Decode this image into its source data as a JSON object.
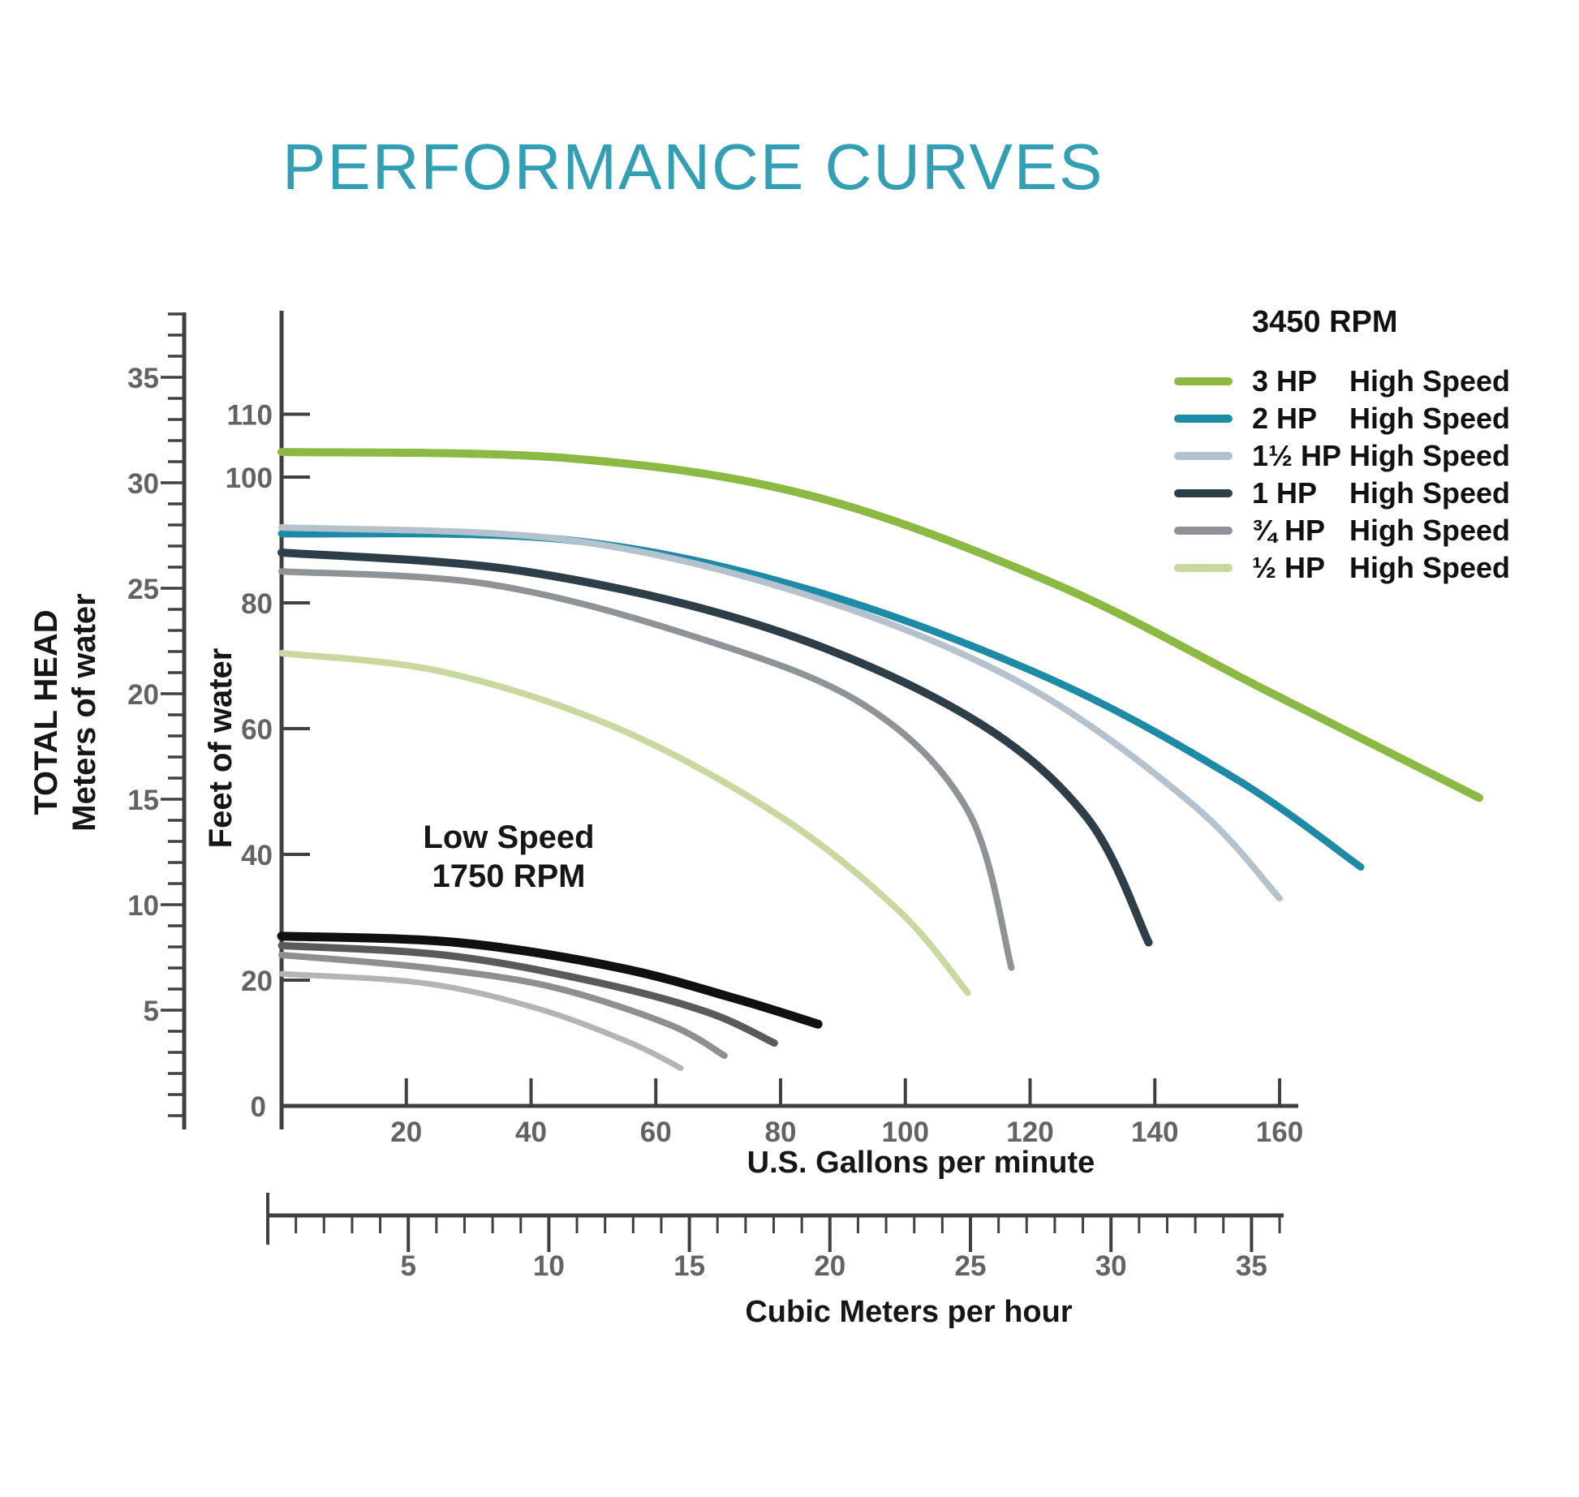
{
  "title": "PERFORMANCE CURVES",
  "labels": {
    "left_axis_title_1": "TOTAL HEAD",
    "left_axis_title_2": "Meters of water",
    "feet_axis_title": "Feet of water",
    "gpm_axis_title": "U.S. Gallons per minute",
    "m3_axis_title": "Cubic Meters per hour",
    "low_speed_note_line1": "Low Speed",
    "low_speed_note_line2": "1750 RPM",
    "origin_label": "0"
  },
  "legend": {
    "header": "3450 RPM",
    "items": [
      {
        "hp": "3 HP",
        "speed": "High Speed",
        "color": "#8bb944"
      },
      {
        "hp": "2 HP",
        "speed": "High Speed",
        "color": "#1d8aa6"
      },
      {
        "hp": "1½ HP",
        "speed": "High Speed",
        "color": "#b3c2cd"
      },
      {
        "hp": "1 HP",
        "speed": "High Speed",
        "color": "#2d3e49"
      },
      {
        "hp": "¾ HP",
        "speed": "High Speed",
        "color": "#8e9397"
      },
      {
        "hp": "½ HP",
        "speed": "High Speed",
        "color": "#c9d89e"
      }
    ]
  },
  "chart_data": {
    "type": "line",
    "title": "PERFORMANCE CURVES",
    "grid": false,
    "legend_position": "top-right",
    "annotation": "Low Speed 1750 RPM",
    "x_axis_primary": {
      "label": "U.S. Gallons per minute",
      "range": [
        0,
        160
      ],
      "ticks": [
        20,
        40,
        60,
        80,
        100,
        120,
        140,
        160
      ],
      "origin_label": "0"
    },
    "x_axis_secondary": {
      "label": "Cubic Meters per hour",
      "range": [
        0,
        36
      ],
      "minor_tick_step": 1,
      "major_ticks": [
        5,
        10,
        15,
        20,
        25,
        30,
        35
      ]
    },
    "y_axis_primary": {
      "label": "Feet of water",
      "range": [
        0,
        115
      ],
      "ticks": [
        20,
        40,
        60,
        80,
        100,
        110
      ]
    },
    "y_axis_secondary": {
      "label": "TOTAL HEAD, Meters of water",
      "range": [
        0,
        38
      ],
      "minor_tick_step": 1,
      "major_ticks": [
        5,
        10,
        15,
        20,
        25,
        30,
        35
      ]
    },
    "series": [
      {
        "id": "3hp-high",
        "name": "3 HP High Speed",
        "rpm": "3450",
        "color": "#8bb944",
        "stroke_width": 10,
        "points": [
          [
            0,
            104
          ],
          [
            46,
            103
          ],
          [
            85,
            97
          ],
          [
            124,
            83
          ],
          [
            158,
            66
          ],
          [
            192,
            49
          ]
        ]
      },
      {
        "id": "2hp-high",
        "name": "2 HP High Speed",
        "rpm": "3450",
        "color": "#1d8aa6",
        "stroke_width": 9,
        "points": [
          [
            0,
            91
          ],
          [
            46,
            90
          ],
          [
            85,
            82
          ],
          [
            123,
            68
          ],
          [
            153,
            52
          ],
          [
            173,
            38
          ]
        ]
      },
      {
        "id": "1-5hp-high",
        "name": "1½ HP High Speed",
        "rpm": "3450",
        "color": "#b3c2cd",
        "stroke_width": 8,
        "points": [
          [
            0,
            92
          ],
          [
            46,
            90
          ],
          [
            85,
            81
          ],
          [
            119,
            67
          ],
          [
            146,
            48
          ],
          [
            160,
            33
          ]
        ]
      },
      {
        "id": "1hp-high",
        "name": "1 HP High Speed",
        "rpm": "3450",
        "color": "#2d3e49",
        "stroke_width": 10,
        "points": [
          [
            0,
            88
          ],
          [
            39,
            85
          ],
          [
            78,
            76
          ],
          [
            110,
            62
          ],
          [
            129,
            46
          ],
          [
            139,
            26
          ]
        ]
      },
      {
        "id": "0-75hp-high",
        "name": "¾ HP High Speed",
        "rpm": "3450",
        "color": "#8e9397",
        "stroke_width": 8,
        "points": [
          [
            0,
            85
          ],
          [
            33,
            83
          ],
          [
            65,
            75
          ],
          [
            93,
            64
          ],
          [
            110,
            47
          ],
          [
            117,
            22
          ]
        ]
      },
      {
        "id": "0-5hp-high",
        "name": "½ HP High Speed",
        "rpm": "3450",
        "color": "#c9d89e",
        "stroke_width": 8,
        "points": [
          [
            0,
            72
          ],
          [
            26,
            69
          ],
          [
            54,
            60
          ],
          [
            80,
            46
          ],
          [
            99,
            31
          ],
          [
            110,
            18
          ]
        ]
      },
      {
        "id": "low-1",
        "name": "Low Speed curve 1",
        "rpm": "1750",
        "color": "#101010",
        "stroke_width": 11,
        "points": [
          [
            0,
            27
          ],
          [
            28,
            26
          ],
          [
            54,
            22
          ],
          [
            73,
            17
          ],
          [
            86,
            13
          ]
        ]
      },
      {
        "id": "low-2",
        "name": "Low Speed curve 2",
        "rpm": "1750",
        "color": "#5a5a5a",
        "stroke_width": 9,
        "points": [
          [
            0,
            25.5
          ],
          [
            26,
            24
          ],
          [
            49,
            20
          ],
          [
            68,
            15
          ],
          [
            79,
            10
          ]
        ]
      },
      {
        "id": "low-3",
        "name": "Low Speed curve 3",
        "rpm": "1750",
        "color": "#8f8f8f",
        "stroke_width": 8,
        "points": [
          [
            0,
            24
          ],
          [
            23,
            22
          ],
          [
            43,
            19
          ],
          [
            62,
            13
          ],
          [
            71,
            8
          ]
        ]
      },
      {
        "id": "low-4",
        "name": "Low Speed curve 4",
        "rpm": "1750",
        "color": "#b4b4b4",
        "stroke_width": 7,
        "points": [
          [
            0,
            21
          ],
          [
            23,
            19.5
          ],
          [
            41,
            15.5
          ],
          [
            56,
            10
          ],
          [
            64,
            6
          ]
        ]
      }
    ]
  }
}
